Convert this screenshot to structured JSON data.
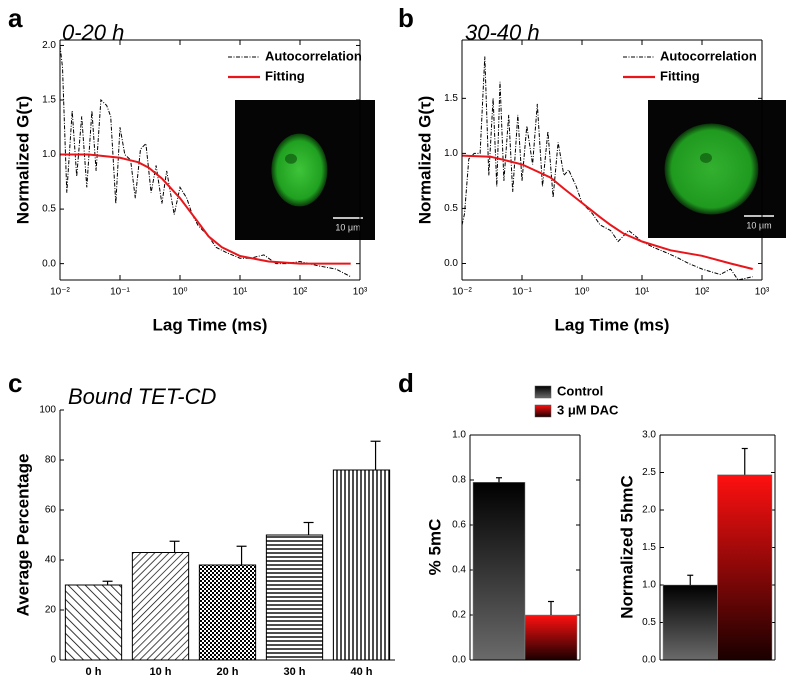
{
  "chart_data": [
    {
      "type": "line",
      "label": "a",
      "title": "0-20 h",
      "x_label": "Lag Time (ms)",
      "y_label": "Normalized G(τ)",
      "xlog": true,
      "box": true,
      "xlim": [
        0.01,
        1000
      ],
      "xticks": [
        {
          "value": 0.01,
          "label": "10⁻²"
        },
        {
          "value": 0.1,
          "label": "10⁻¹"
        },
        {
          "value": 1,
          "label": "10⁰"
        },
        {
          "value": 10,
          "label": "10¹"
        },
        {
          "value": 100,
          "label": "10²"
        },
        {
          "value": 1000,
          "label": "10³"
        }
      ],
      "ylim": [
        -0.15,
        2.05
      ],
      "yticks": [
        {
          "value": 0,
          "label": "0.0"
        },
        {
          "value": 0.5,
          "label": "0.5"
        },
        {
          "value": 1,
          "label": "1.0"
        },
        {
          "value": 1.5,
          "label": "1.5"
        },
        {
          "value": 2,
          "label": "2.0"
        }
      ],
      "inset_scale": "10 μm",
      "series": [
        {
          "name": "Autocorrelation",
          "color": "#000000",
          "dashed": true,
          "x": [
            0.01,
            0.011,
            0.013,
            0.016,
            0.019,
            0.023,
            0.028,
            0.034,
            0.04,
            0.048,
            0.06,
            0.07,
            0.085,
            0.1,
            0.12,
            0.15,
            0.18,
            0.22,
            0.27,
            0.33,
            0.4,
            0.5,
            0.6,
            0.8,
            1,
            1.3,
            1.6,
            2,
            3,
            4,
            6,
            10,
            15,
            25,
            40,
            60,
            100,
            200,
            400,
            700
          ],
          "values": [
            2.0,
            1.8,
            0.65,
            1.4,
            0.8,
            1.35,
            0.7,
            1.4,
            0.85,
            1.5,
            1.45,
            1.35,
            0.55,
            1.25,
            1.0,
            0.95,
            0.6,
            1.05,
            1.1,
            0.65,
            0.9,
            0.55,
            0.85,
            0.45,
            0.7,
            0.6,
            0.45,
            0.35,
            0.25,
            0.15,
            0.1,
            0.05,
            0.05,
            0.08,
            0.0,
            0.0,
            0.02,
            -0.02,
            -0.05,
            -0.12
          ]
        },
        {
          "name": "Fitting",
          "color": "#e8161b",
          "x": [
            0.01,
            0.03,
            0.1,
            0.2,
            0.3,
            0.5,
            1,
            2,
            3,
            5,
            10,
            30,
            100,
            300,
            700
          ],
          "values": [
            1.0,
            1.0,
            0.97,
            0.93,
            0.88,
            0.78,
            0.6,
            0.38,
            0.25,
            0.15,
            0.07,
            0.02,
            0.0,
            0.0,
            0.0
          ]
        }
      ]
    },
    {
      "type": "line",
      "label": "b",
      "title": "30-40 h",
      "x_label": "Lag Time (ms)",
      "y_label": "Normalized G(τ)",
      "xlog": true,
      "box": true,
      "xlim": [
        0.01,
        1000
      ],
      "xticks": [
        {
          "value": 0.01,
          "label": "10⁻²"
        },
        {
          "value": 0.1,
          "label": "10⁻¹"
        },
        {
          "value": 1,
          "label": "10⁰"
        },
        {
          "value": 10,
          "label": "10¹"
        },
        {
          "value": 100,
          "label": "10²"
        },
        {
          "value": 1000,
          "label": "10³"
        }
      ],
      "ylim": [
        -0.15,
        2.03
      ],
      "yticks": [
        {
          "value": 0,
          "label": "0.0"
        },
        {
          "value": 0.5,
          "label": "0.5"
        },
        {
          "value": 1,
          "label": "1.0"
        },
        {
          "value": 1.5,
          "label": "1.5"
        }
      ],
      "inset_scale": "10 μm",
      "series": [
        {
          "name": "Autocorrelation",
          "color": "#000000",
          "dashed": true,
          "x": [
            0.01,
            0.011,
            0.013,
            0.016,
            0.02,
            0.024,
            0.028,
            0.033,
            0.038,
            0.043,
            0.05,
            0.06,
            0.07,
            0.085,
            0.1,
            0.12,
            0.15,
            0.18,
            0.22,
            0.27,
            0.33,
            0.4,
            0.5,
            0.6,
            0.8,
            1,
            1.5,
            2,
            3,
            4,
            6,
            10,
            15,
            25,
            40,
            60,
            100,
            200,
            300,
            400,
            700
          ],
          "values": [
            0.35,
            0.45,
            0.95,
            1.0,
            1.0,
            1.88,
            0.8,
            1.5,
            0.7,
            1.65,
            0.75,
            1.35,
            0.65,
            1.35,
            0.75,
            1.25,
            0.9,
            1.45,
            0.7,
            1.2,
            0.6,
            1.1,
            0.8,
            0.85,
            0.7,
            0.55,
            0.45,
            0.35,
            0.3,
            0.2,
            0.3,
            0.2,
            0.15,
            0.1,
            0.05,
            0.0,
            -0.05,
            -0.1,
            -0.05,
            -0.15,
            -0.12
          ]
        },
        {
          "name": "Fitting",
          "color": "#e8161b",
          "x": [
            0.01,
            0.03,
            0.1,
            0.3,
            0.5,
            1,
            2,
            3,
            5,
            10,
            30,
            100,
            300,
            700
          ],
          "values": [
            0.98,
            0.97,
            0.9,
            0.78,
            0.68,
            0.55,
            0.42,
            0.35,
            0.27,
            0.2,
            0.12,
            0.07,
            0.0,
            -0.05
          ]
        }
      ]
    },
    {
      "type": "bar",
      "label": "c",
      "title": "Bound TET-CD",
      "y_label": "Average Percentage",
      "box": false,
      "color": "#000000",
      "categories": [
        "0 h",
        "10 h",
        "20 h",
        "30 h",
        "40 h"
      ],
      "values": [
        30,
        43,
        38,
        50,
        76
      ],
      "errors": [
        1.5,
        4.5,
        7.5,
        5,
        11.5
      ],
      "ylim": [
        0,
        100
      ],
      "yticks": [
        0,
        20,
        40,
        60,
        80,
        100
      ]
    },
    {
      "type": "bar",
      "label": "d",
      "y_label": "% 5mC",
      "box": true,
      "ylim": [
        0,
        1.0
      ],
      "yticks": [
        {
          "value": 0,
          "label": "0.0"
        },
        {
          "value": 0.2,
          "label": "0.2"
        },
        {
          "value": 0.4,
          "label": "0.4"
        },
        {
          "value": 0.6,
          "label": "0.6"
        },
        {
          "value": 0.8,
          "label": "0.8"
        },
        {
          "value": 1.0,
          "label": "1.0"
        }
      ],
      "series": [
        {
          "name": "Control",
          "color": "#000000",
          "color2": "#6a6a6a",
          "values": [
            0.79
          ],
          "errors": [
            0.02
          ]
        },
        {
          "name": "3 μM DAC",
          "color": "#ff1010",
          "color2": "#1a0000",
          "values": [
            0.2
          ],
          "errors": [
            0.06
          ]
        }
      ]
    },
    {
      "type": "bar",
      "y_label": "Normalized 5hmC",
      "box": true,
      "ylim": [
        0,
        3.0
      ],
      "yticks": [
        {
          "value": 0,
          "label": "0.0"
        },
        {
          "value": 0.5,
          "label": "0.5"
        },
        {
          "value": 1.0,
          "label": "1.0"
        },
        {
          "value": 1.5,
          "label": "1.5"
        },
        {
          "value": 2.0,
          "label": "2.0"
        },
        {
          "value": 2.5,
          "label": "2.5"
        },
        {
          "value": 3.0,
          "label": "3.0"
        }
      ],
      "series": [
        {
          "color": "#000000",
          "color2": "#6a6a6a",
          "values": [
            1.0
          ],
          "errors": [
            0.13
          ]
        },
        {
          "color": "#ff1010",
          "color2": "#1a0000",
          "values": [
            2.47
          ],
          "errors": [
            0.35
          ]
        }
      ]
    }
  ]
}
